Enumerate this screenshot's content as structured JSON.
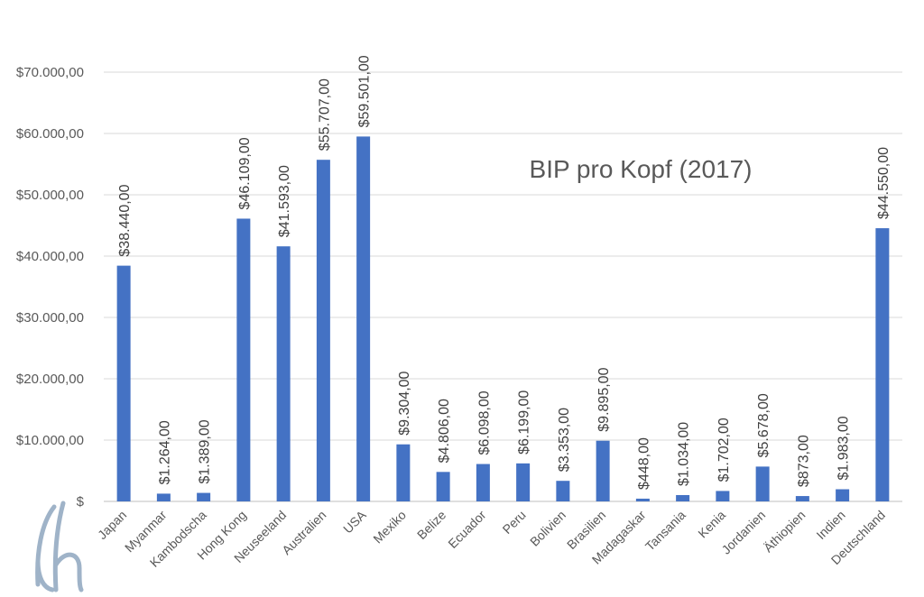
{
  "chart_data": {
    "type": "bar",
    "title": "BIP pro Kopf (2017)",
    "xlabel": "",
    "ylabel": "",
    "ylim": [
      0,
      70000
    ],
    "grid": true,
    "legend": "none",
    "bar_color": "#4472c4",
    "yticks": [
      "$",
      "$10.000,00",
      "$20.000,00",
      "$30.000,00",
      "$40.000,00",
      "$50.000,00",
      "$60.000,00",
      "$70.000,00"
    ],
    "categories": [
      "Japan",
      "Myanmar",
      "Kambodscha",
      "Hong Kong",
      "Neuseeland",
      "Australien",
      "USA",
      "Mexiko",
      "Belize",
      "Ecuador",
      "Peru",
      "Bolivien",
      "Brasilien",
      "Madagaskar",
      "Tansania",
      "Kenia",
      "Jordanien",
      "Äthiopien",
      "Indien",
      "Deutschland"
    ],
    "values": [
      38440,
      1264,
      1389,
      46109,
      41593,
      55707,
      59501,
      9304,
      4806,
      6098,
      6199,
      3353,
      9895,
      448,
      1034,
      1702,
      5678,
      873,
      1983,
      44550
    ],
    "labels": [
      "$38.440,00",
      "$1.264,00",
      "$1.389,00",
      "$46.109,00",
      "$41.593,00",
      "$55.707,00",
      "$59.501,00",
      "$9.304,00",
      "$4.806,00",
      "$6.098,00",
      "$6.199,00",
      "$3.353,00",
      "$9.895,00",
      "$448,00",
      "$1.034,00",
      "$1.702,00",
      "$5.678,00",
      "$873,00",
      "$1.983,00",
      "$44.550,00"
    ]
  }
}
